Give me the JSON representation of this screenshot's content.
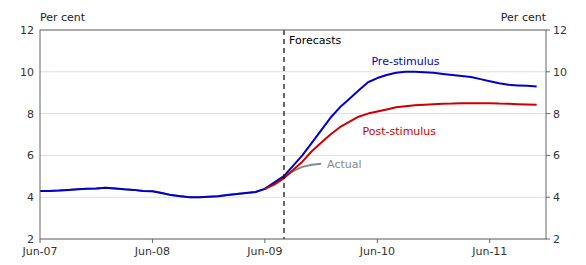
{
  "chart_data": {
    "type": "line",
    "ylabel": "Per cent",
    "y2label": "Per cent",
    "xlim": [
      2007.0,
      2011.5
    ],
    "xticks": [
      {
        "value": 2007.0,
        "label": "Jun-07"
      },
      {
        "value": 2008.0,
        "label": "Jun-08"
      },
      {
        "value": 2009.0,
        "label": "Jun-09"
      },
      {
        "value": 2010.0,
        "label": "Jun-10"
      },
      {
        "value": 2011.0,
        "label": "Jun-11"
      }
    ],
    "ylim": [
      2,
      12
    ],
    "yticks": [
      2,
      4,
      6,
      8,
      10,
      12
    ],
    "y2lim": [
      2,
      12
    ],
    "y2ticks": [
      2,
      4,
      6,
      8,
      10,
      12
    ],
    "grid": true,
    "annotations": [
      {
        "text": "Forecasts",
        "x": 2009.17
      }
    ],
    "series": [
      {
        "name": "Pre-stimulus",
        "color": "#0000cc",
        "x": [
          2007.0,
          2007.083,
          2007.167,
          2007.25,
          2007.333,
          2007.417,
          2007.5,
          2007.583,
          2007.667,
          2007.75,
          2007.833,
          2007.917,
          2008.0,
          2008.083,
          2008.167,
          2008.25,
          2008.333,
          2008.417,
          2008.5,
          2008.583,
          2008.667,
          2008.75,
          2008.833,
          2008.917,
          2009.0,
          2009.083,
          2009.167,
          2009.25,
          2009.333,
          2009.417,
          2009.5,
          2009.583,
          2009.667,
          2009.75,
          2009.833,
          2009.917,
          2010.0,
          2010.083,
          2010.167,
          2010.25,
          2010.333,
          2010.417,
          2010.5,
          2010.583,
          2010.667,
          2010.75,
          2010.833,
          2010.917,
          2011.0,
          2011.083,
          2011.167,
          2011.25,
          2011.333,
          2011.417
        ],
        "values": [
          4.3,
          4.3,
          4.32,
          4.35,
          4.38,
          4.4,
          4.42,
          4.45,
          4.42,
          4.38,
          4.35,
          4.3,
          4.28,
          4.2,
          4.1,
          4.05,
          4.0,
          4.0,
          4.02,
          4.05,
          4.1,
          4.15,
          4.2,
          4.25,
          4.4,
          4.7,
          5.0,
          5.5,
          6.0,
          6.6,
          7.2,
          7.8,
          8.3,
          8.7,
          9.1,
          9.5,
          9.7,
          9.85,
          9.95,
          10.0,
          10.0,
          9.98,
          9.95,
          9.9,
          9.85,
          9.8,
          9.75,
          9.65,
          9.55,
          9.45,
          9.38,
          9.35,
          9.33,
          9.3
        ]
      },
      {
        "name": "Post-stimulus",
        "color": "#cc0000",
        "x": [
          2009.0,
          2009.083,
          2009.167,
          2009.25,
          2009.333,
          2009.417,
          2009.5,
          2009.583,
          2009.667,
          2009.75,
          2009.833,
          2009.917,
          2010.0,
          2010.083,
          2010.167,
          2010.25,
          2010.333,
          2010.417,
          2010.5,
          2010.583,
          2010.667,
          2010.75,
          2010.833,
          2010.917,
          2011.0,
          2011.083,
          2011.167,
          2011.25,
          2011.333,
          2011.417
        ],
        "values": [
          4.4,
          4.6,
          4.9,
          5.3,
          5.7,
          6.2,
          6.6,
          7.0,
          7.35,
          7.6,
          7.85,
          8.0,
          8.1,
          8.2,
          8.3,
          8.35,
          8.4,
          8.42,
          8.45,
          8.47,
          8.48,
          8.5,
          8.5,
          8.5,
          8.5,
          8.48,
          8.47,
          8.45,
          8.43,
          8.42
        ]
      },
      {
        "name": "Actual",
        "color": "#888888",
        "x": [
          2007.0,
          2007.083,
          2007.167,
          2007.25,
          2007.333,
          2007.417,
          2007.5,
          2007.583,
          2007.667,
          2007.75,
          2007.833,
          2007.917,
          2008.0,
          2008.083,
          2008.167,
          2008.25,
          2008.333,
          2008.417,
          2008.5,
          2008.583,
          2008.667,
          2008.75,
          2008.833,
          2008.917,
          2009.0,
          2009.083,
          2009.167,
          2009.25,
          2009.333,
          2009.417,
          2009.5
        ],
        "values": [
          4.3,
          4.3,
          4.32,
          4.35,
          4.38,
          4.4,
          4.42,
          4.45,
          4.42,
          4.38,
          4.35,
          4.3,
          4.28,
          4.2,
          4.1,
          4.05,
          4.0,
          4.0,
          4.02,
          4.05,
          4.1,
          4.15,
          4.2,
          4.25,
          4.4,
          4.7,
          5.0,
          5.25,
          5.45,
          5.55,
          5.6
        ]
      }
    ]
  }
}
